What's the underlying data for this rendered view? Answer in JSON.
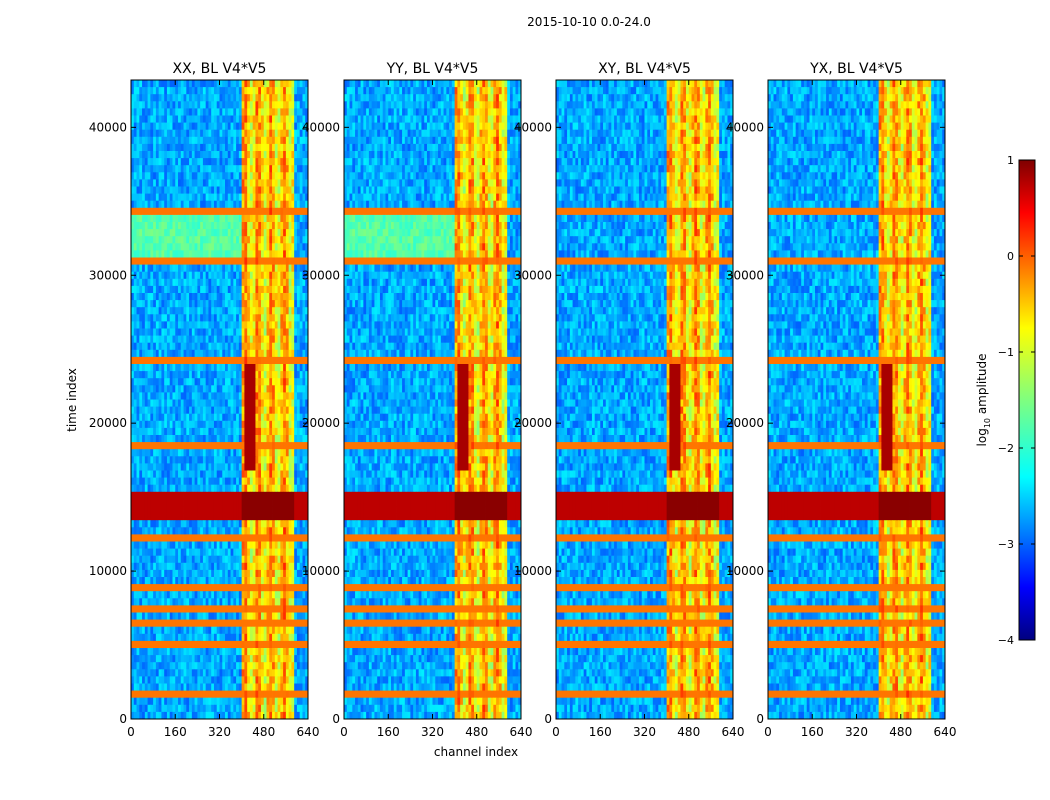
{
  "figure": {
    "suptitle": "2015-10-10 0.0-24.0",
    "ylabel": "time index",
    "xlabel": "channel index"
  },
  "colorbar": {
    "label_main": "log",
    "label_sub": "10",
    "label_rest": " amplitude",
    "ticks": [
      1,
      0,
      -1,
      -2,
      -3,
      -4
    ],
    "tick_labels": [
      "1",
      "0",
      "−1",
      "−2",
      "−3",
      "−4"
    ],
    "range": [
      -4,
      1
    ],
    "colormap": "jet",
    "colors": [
      "#00007f",
      "#0000ff",
      "#007fff",
      "#00ffff",
      "#7fff7f",
      "#ffff00",
      "#ff7f00",
      "#ff0000",
      "#7f0000"
    ]
  },
  "chart_data": [
    {
      "type": "heatmap",
      "title": "XX, BL V4*V5",
      "xlabel": "channel index",
      "ylabel": "time index",
      "xlim": [
        0,
        640
      ],
      "ylim": [
        0,
        43200
      ],
      "xticks": [
        0,
        160,
        320,
        480,
        640
      ],
      "yticks": [
        0,
        10000,
        20000,
        30000,
        40000
      ],
      "value_label": "log10 amplitude",
      "value_range": [
        -4,
        1
      ]
    },
    {
      "type": "heatmap",
      "title": "YY, BL V4*V5",
      "xlabel": "channel index",
      "ylabel": "time index",
      "xlim": [
        0,
        640
      ],
      "ylim": [
        0,
        43200
      ],
      "xticks": [
        0,
        160,
        320,
        480,
        640
      ],
      "yticks": [
        0,
        10000,
        20000,
        30000,
        40000
      ],
      "value_label": "log10 amplitude",
      "value_range": [
        -4,
        1
      ]
    },
    {
      "type": "heatmap",
      "title": "XY, BL V4*V5",
      "xlabel": "channel index",
      "ylabel": "time index",
      "xlim": [
        0,
        640
      ],
      "ylim": [
        0,
        43200
      ],
      "xticks": [
        0,
        160,
        320,
        480,
        640
      ],
      "yticks": [
        0,
        10000,
        20000,
        30000,
        40000
      ],
      "value_label": "log10 amplitude",
      "value_range": [
        -4,
        1
      ]
    },
    {
      "type": "heatmap",
      "title": "YX, BL V4*V5",
      "xlabel": "channel index",
      "ylabel": "time index",
      "xlim": [
        0,
        640
      ],
      "ylim": [
        0,
        43200
      ],
      "xticks": [
        0,
        160,
        320,
        480,
        640
      ],
      "yticks": [
        0,
        10000,
        20000,
        30000,
        40000
      ],
      "value_label": "log10 amplitude",
      "value_range": [
        -4,
        1
      ]
    }
  ]
}
